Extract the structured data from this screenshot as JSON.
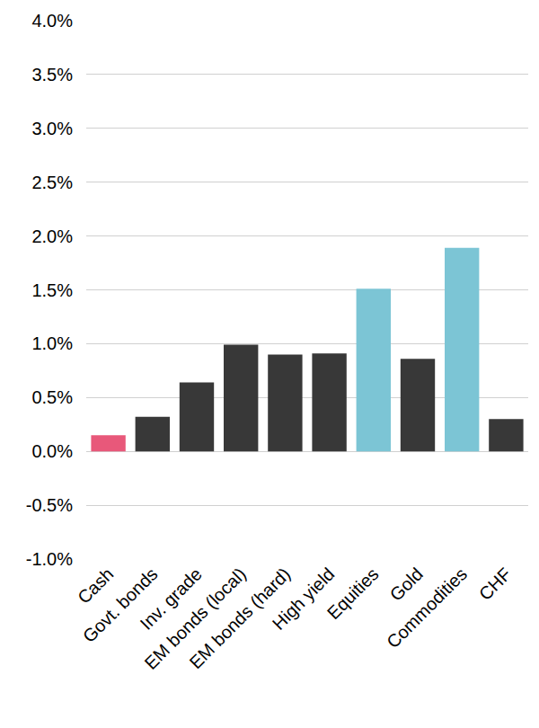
{
  "chart_data": {
    "type": "bar",
    "categories": [
      "Cash",
      "Govt. bonds",
      "Inv. grade",
      "EM bonds (local)",
      "EM bonds (hard)",
      "High yield",
      "Equities",
      "Gold",
      "Commodities",
      "CHF"
    ],
    "values": [
      0.15,
      0.32,
      0.64,
      0.99,
      0.9,
      0.91,
      1.51,
      0.86,
      1.89,
      0.3
    ],
    "colors": [
      "#e8587a",
      "#383838",
      "#383838",
      "#383838",
      "#383838",
      "#383838",
      "#7cc5d5",
      "#383838",
      "#7cc5d5",
      "#383838"
    ],
    "ylim": [
      -1,
      4
    ],
    "yticks": [
      {
        "value": -1,
        "label": "-1.0%"
      },
      {
        "value": -0.5,
        "label": "-0.5%"
      },
      {
        "value": 0,
        "label": "0.0%"
      },
      {
        "value": 0.5,
        "label": "0.5%"
      },
      {
        "value": 1,
        "label": "1.0%"
      },
      {
        "value": 1.5,
        "label": "1.5%"
      },
      {
        "value": 2,
        "label": "2.0%"
      },
      {
        "value": 2.5,
        "label": "2.5%"
      },
      {
        "value": 3,
        "label": "3.0%"
      },
      {
        "value": 3.5,
        "label": "3.5%"
      },
      {
        "value": 4,
        "label": "4.0%"
      }
    ],
    "grid": true
  }
}
